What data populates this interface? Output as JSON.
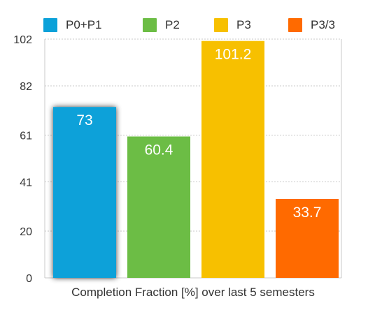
{
  "chart_data": {
    "type": "bar",
    "categories": [
      "P0+P1",
      "P2",
      "P3",
      "P3/3"
    ],
    "values": [
      73,
      60.4,
      101.2,
      33.7
    ],
    "data_labels": [
      "73",
      "60.4",
      "101.2",
      "33.7"
    ],
    "colors": [
      "#0ba1d9",
      "#6cbd45",
      "#f7c000",
      "#ff6a00"
    ],
    "xlabel": "Completion Fraction [%] over last 5 semesters",
    "ylabel": "",
    "ylim": [
      0,
      102
    ],
    "yticks": [
      0,
      20,
      41,
      61,
      82,
      102
    ],
    "ytick_labels": [
      "0",
      "20",
      "41",
      "61",
      "82",
      "102"
    ],
    "grid": true,
    "legend": {
      "position": "top",
      "entries": [
        {
          "label": "P0+P1",
          "color": "#0ba1d9"
        },
        {
          "label": "P2",
          "color": "#6cbd45"
        },
        {
          "label": "P3",
          "color": "#f7c000"
        },
        {
          "label": "P3/3",
          "color": "#ff6a00"
        }
      ]
    }
  }
}
